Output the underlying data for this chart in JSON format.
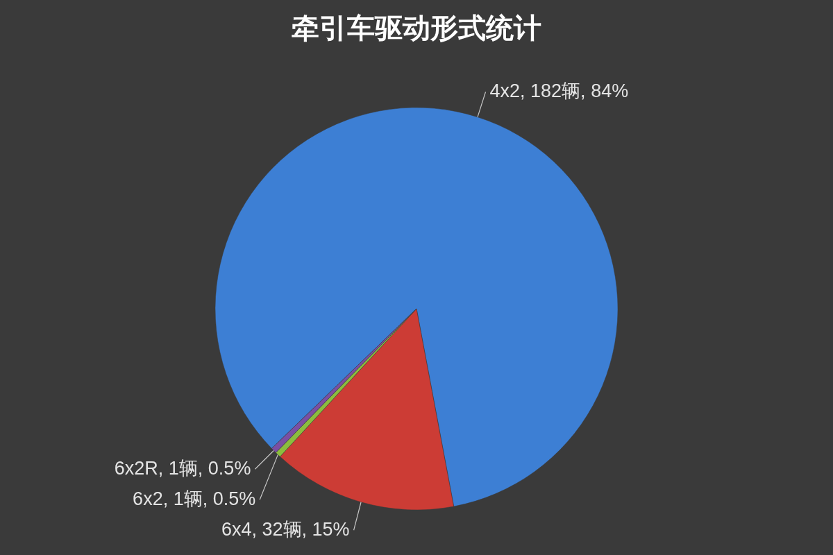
{
  "chart_data": {
    "type": "pie",
    "title": "牵引车驱动形式统计",
    "categories": [
      "4x2",
      "6x4",
      "6x2",
      "6x2R"
    ],
    "values": [
      182,
      32,
      1,
      1
    ],
    "colors": [
      "#3d7fd4",
      "#cc3c35",
      "#8cbd3e",
      "#7a4fa3"
    ],
    "value_labels": [
      "182辆, 84%",
      "32辆, 15%",
      "1辆, 0.5%",
      "1辆, 0.5%"
    ]
  }
}
